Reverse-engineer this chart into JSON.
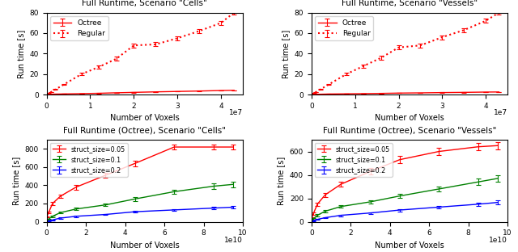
{
  "top_left": {
    "title": "Full Runtime, Scenario \"Cells\"",
    "xlabel": "Number of Voxels",
    "ylabel": "Run time [s]",
    "xlim": [
      0,
      45000000.0
    ],
    "ylim": [
      0,
      80
    ],
    "xticks": [
      0,
      10000000.0,
      20000000.0,
      30000000.0,
      40000000.0
    ],
    "xticklabels": [
      "0",
      "1",
      "2",
      "3",
      "4"
    ],
    "offset_text": "1e7",
    "octree_x": [
      0,
      200000.0,
      500000.0,
      1000000.0,
      2000000.0,
      4000000.0,
      8000000.0,
      12000000.0,
      16000000.0,
      20000000.0,
      25000000.0,
      30000000.0,
      35000000.0,
      40000000.0,
      43000000.0
    ],
    "octree_y": [
      0.1,
      0.2,
      0.3,
      0.4,
      0.5,
      0.7,
      1.0,
      1.3,
      1.8,
      2.2,
      2.7,
      3.1,
      3.5,
      4.0,
      4.2
    ],
    "octree_yerr": [
      0.05,
      0.05,
      0.05,
      0.05,
      0.05,
      0.1,
      0.1,
      0.1,
      0.1,
      0.15,
      0.15,
      0.15,
      0.2,
      0.2,
      0.2
    ],
    "regular_x": [
      0,
      200000.0,
      500000.0,
      1000000.0,
      2000000.0,
      4000000.0,
      8000000.0,
      12000000.0,
      16000000.0,
      20000000.0,
      25000000.0,
      30000000.0,
      35000000.0,
      40000000.0,
      43000000.0
    ],
    "regular_y": [
      0.1,
      0.5,
      1.2,
      2.5,
      5,
      10,
      20,
      27,
      35,
      48,
      49,
      55,
      62,
      70,
      80
    ],
    "regular_yerr": [
      0.1,
      0.1,
      0.2,
      0.3,
      0.5,
      0.5,
      1.0,
      1.5,
      2.0,
      2.0,
      2.0,
      2.0,
      2.0,
      2.0,
      2.0
    ]
  },
  "top_right": {
    "title": "Full Runtime, Scenario \"Vessels\"",
    "xlabel": "Number of Voxels",
    "ylabel": "Run time [s]",
    "xlim": [
      0,
      45000000.0
    ],
    "ylim": [
      0,
      80
    ],
    "xticks": [
      0,
      10000000.0,
      20000000.0,
      30000000.0,
      40000000.0
    ],
    "xticklabels": [
      "0",
      "1",
      "2",
      "3",
      "4"
    ],
    "offset_text": "1e7",
    "octree_x": [
      0,
      200000.0,
      500000.0,
      1000000.0,
      2000000.0,
      4000000.0,
      8000000.0,
      12000000.0,
      16000000.0,
      20000000.0,
      25000000.0,
      30000000.0,
      35000000.0,
      40000000.0,
      43000000.0
    ],
    "octree_y": [
      0.1,
      0.15,
      0.2,
      0.3,
      0.4,
      0.6,
      0.8,
      1.0,
      1.2,
      1.5,
      1.7,
      2.0,
      2.2,
      2.5,
      2.6
    ],
    "octree_yerr": [
      0.05,
      0.05,
      0.05,
      0.05,
      0.05,
      0.1,
      0.1,
      0.1,
      0.1,
      0.1,
      0.15,
      0.15,
      0.15,
      0.15,
      0.15
    ],
    "regular_x": [
      0,
      200000.0,
      500000.0,
      1000000.0,
      2000000.0,
      4000000.0,
      8000000.0,
      12000000.0,
      16000000.0,
      20000000.0,
      25000000.0,
      30000000.0,
      35000000.0,
      40000000.0,
      43000000.0
    ],
    "regular_y": [
      0.1,
      0.5,
      1.2,
      2.5,
      5,
      10,
      20,
      28,
      36,
      46,
      48,
      56,
      63,
      72,
      80
    ],
    "regular_yerr": [
      0.1,
      0.1,
      0.2,
      0.3,
      0.5,
      0.5,
      1.0,
      1.5,
      2.0,
      2.0,
      2.0,
      2.0,
      2.0,
      2.0,
      2.0
    ]
  },
  "bot_left": {
    "title": "Full Runtime (Octree), Scenario \"Cells\"",
    "xlabel": "Number of Voxels",
    "ylabel": "Run time [s]",
    "xlim": [
      0,
      100000000000.0
    ],
    "ylim": [
      0,
      900
    ],
    "xticks": [
      0,
      20000000000.0,
      40000000000.0,
      60000000000.0,
      80000000000.0,
      100000000000.0
    ],
    "xticklabels": [
      "0",
      "2",
      "4",
      "6",
      "8",
      "10"
    ],
    "offset_text": "1e10",
    "s05_x": [
      0,
      1000000000.0,
      3000000000.0,
      7000000000.0,
      15000000000.0,
      30000000000.0,
      45000000000.0,
      65000000000.0,
      85000000000.0,
      95000000000.0
    ],
    "s05_y": [
      50,
      100,
      200,
      280,
      380,
      510,
      640,
      820,
      820,
      820
    ],
    "s05_yerr": [
      5,
      10,
      15,
      20,
      25,
      30,
      30,
      30,
      30,
      30
    ],
    "s10_x": [
      0,
      1000000000.0,
      3000000000.0,
      7000000000.0,
      15000000000.0,
      30000000000.0,
      45000000000.0,
      65000000000.0,
      85000000000.0,
      95000000000.0
    ],
    "s10_y": [
      10,
      30,
      60,
      100,
      140,
      185,
      250,
      330,
      390,
      410
    ],
    "s10_yerr": [
      3,
      5,
      8,
      10,
      12,
      15,
      20,
      25,
      30,
      30
    ],
    "s20_x": [
      0,
      1000000000.0,
      3000000000.0,
      7000000000.0,
      15000000000.0,
      30000000000.0,
      45000000000.0,
      65000000000.0,
      85000000000.0,
      95000000000.0
    ],
    "s20_y": [
      5,
      10,
      20,
      40,
      60,
      80,
      110,
      130,
      150,
      160
    ],
    "s20_yerr": [
      2,
      3,
      4,
      5,
      7,
      8,
      10,
      12,
      15,
      15
    ]
  },
  "bot_right": {
    "title": "Full Runtime (Octree), Scenario \"Vessels\"",
    "xlabel": "Number of Voxels",
    "ylabel": "Run time [s]",
    "xlim": [
      0,
      100000000000.0
    ],
    "ylim": [
      0,
      700
    ],
    "xticks": [
      0,
      20000000000.0,
      40000000000.0,
      60000000000.0,
      80000000000.0,
      100000000000.0
    ],
    "xticklabels": [
      "0",
      "2",
      "4",
      "6",
      "8",
      "10"
    ],
    "offset_text": "1e10",
    "s05_x": [
      0,
      1000000000.0,
      3000000000.0,
      7000000000.0,
      15000000000.0,
      30000000000.0,
      45000000000.0,
      65000000000.0,
      85000000000.0,
      95000000000.0
    ],
    "s05_y": [
      30,
      70,
      150,
      230,
      320,
      430,
      530,
      600,
      640,
      650
    ],
    "s05_yerr": [
      5,
      8,
      12,
      18,
      22,
      28,
      30,
      30,
      30,
      30
    ],
    "s10_x": [
      0,
      1000000000.0,
      3000000000.0,
      7000000000.0,
      15000000000.0,
      30000000000.0,
      45000000000.0,
      65000000000.0,
      85000000000.0,
      95000000000.0
    ],
    "s10_y": [
      8,
      25,
      55,
      90,
      130,
      170,
      220,
      280,
      340,
      370
    ],
    "s10_yerr": [
      3,
      5,
      8,
      10,
      12,
      15,
      18,
      22,
      28,
      28
    ],
    "s20_x": [
      0,
      1000000000.0,
      3000000000.0,
      7000000000.0,
      15000000000.0,
      30000000000.0,
      45000000000.0,
      65000000000.0,
      85000000000.0,
      95000000000.0
    ],
    "s20_y": [
      4,
      10,
      20,
      35,
      55,
      75,
      100,
      125,
      150,
      165
    ],
    "s20_yerr": [
      2,
      3,
      4,
      5,
      7,
      8,
      10,
      12,
      14,
      15
    ]
  },
  "color_red": "#ff0000",
  "color_green": "#008000",
  "color_blue": "#0000ff"
}
